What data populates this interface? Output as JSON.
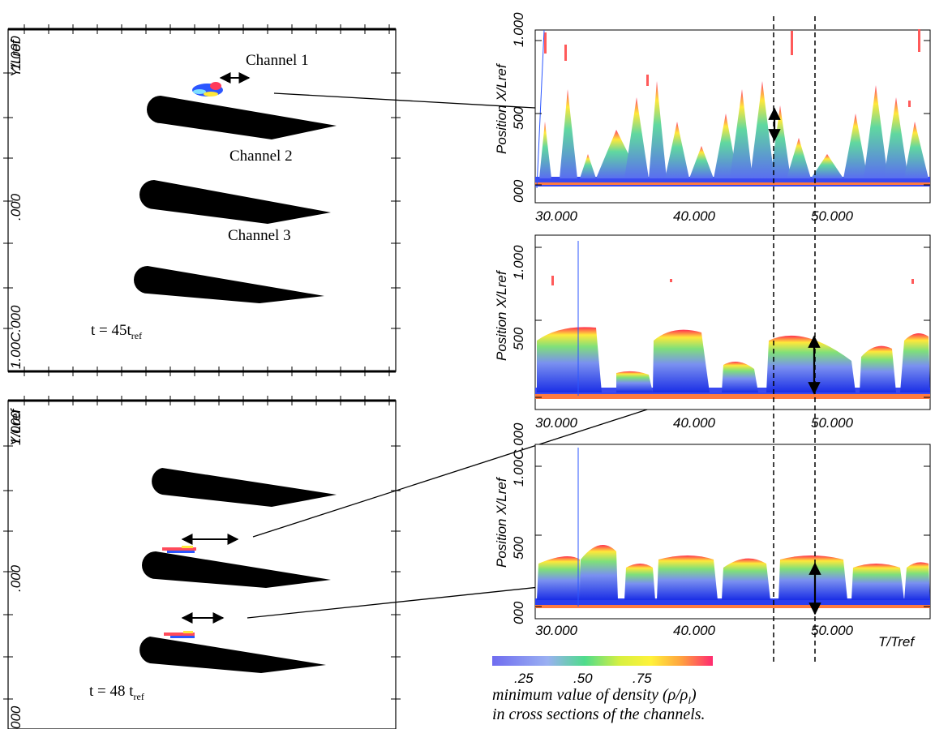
{
  "left_panels": {
    "top": {
      "y_axis_label": "Y/Lref",
      "y_tick_top": "1.000",
      "y_tick_mid": ".000",
      "y_tick_bottom": "1.00C.000",
      "channel_labels": [
        "Channel 1",
        "Channel 2",
        "Channel 3"
      ],
      "time_label_main": "t = 45t",
      "time_label_sub": "ref"
    },
    "bottom": {
      "y_axis_label": "Y/Lref",
      "y_tick_top": "1.000",
      "y_tick_mid": ".000",
      "y_tick_bottom": "000",
      "time_label_main": "t = 48 t",
      "time_label_sub": "ref"
    }
  },
  "right_panels": [
    {
      "y_axis_label": "Position X/Lref",
      "y_tick_top": "1.000",
      "y_tick_mid": "500",
      "y_tick_bottom": "000",
      "x_ticks": [
        "30.000",
        "40.000",
        "50.000"
      ]
    },
    {
      "y_axis_label": "Position X/Lref",
      "y_tick_top": "1.000",
      "y_tick_mid": "500",
      "y_tick_bottom": "1.00C.000",
      "x_ticks": [
        "30.000",
        "40.000",
        "50.000"
      ]
    },
    {
      "y_axis_label": "Position X/Lref",
      "y_tick_top": "1.000",
      "y_tick_mid": "500",
      "y_tick_bottom": "000",
      "x_ticks": [
        "30.000",
        "40.000",
        "50.000"
      ],
      "x_axis_label": "T/Tref"
    }
  ],
  "colorbar": {
    "ticks": [
      ".25",
      ".50",
      ".75"
    ],
    "colors": [
      "#6f6cf0",
      "#9aa8f0",
      "#4fdc8c",
      "#b8ee40",
      "#fff23a",
      "#ffa040",
      "#ff3a6a"
    ]
  },
  "caption": {
    "line1": "minimum value of density (ρ/ρ",
    "line1_sub": "l",
    "line1_end": ")",
    "line2": "in cross sections of the channels."
  }
}
